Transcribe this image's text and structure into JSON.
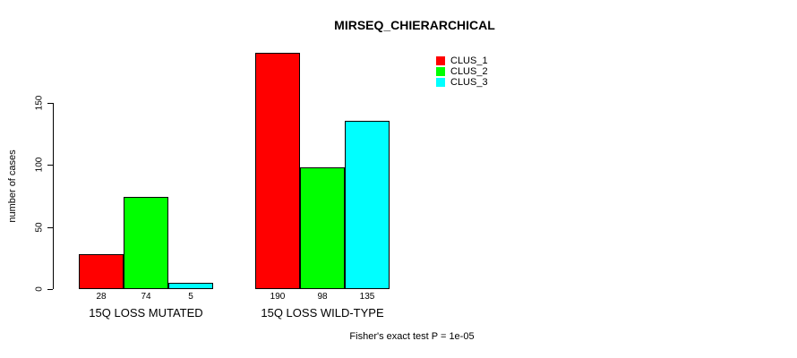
{
  "chart_data": {
    "type": "bar",
    "title": "MIRSEQ_CHIERARCHICAL",
    "ylabel": "number of cases",
    "xlabel": "",
    "yticks": [
      0,
      50,
      100,
      150
    ],
    "ylim": [
      0,
      190
    ],
    "grid": false,
    "legend_position": "top-right",
    "categories": [
      "15Q LOSS MUTATED",
      "15Q LOSS WILD-TYPE"
    ],
    "series": [
      {
        "name": "CLUS_1",
        "color": "#ff0000",
        "values": [
          28,
          190
        ]
      },
      {
        "name": "CLUS_2",
        "color": "#00ff00",
        "values": [
          74,
          98
        ]
      },
      {
        "name": "CLUS_3",
        "color": "#00ffff",
        "values": [
          5,
          135
        ]
      }
    ],
    "bar_value_labels": [
      [
        28,
        74,
        5
      ],
      [
        190,
        98,
        135
      ]
    ],
    "annotation": "Fisher's exact test P = 1e-05"
  },
  "colors": {
    "background": "#ffffff",
    "axis": "#000000",
    "text": "#000000",
    "clus_1": "#ff0000",
    "clus_2": "#00ff00",
    "clus_3": "#00ffff"
  }
}
